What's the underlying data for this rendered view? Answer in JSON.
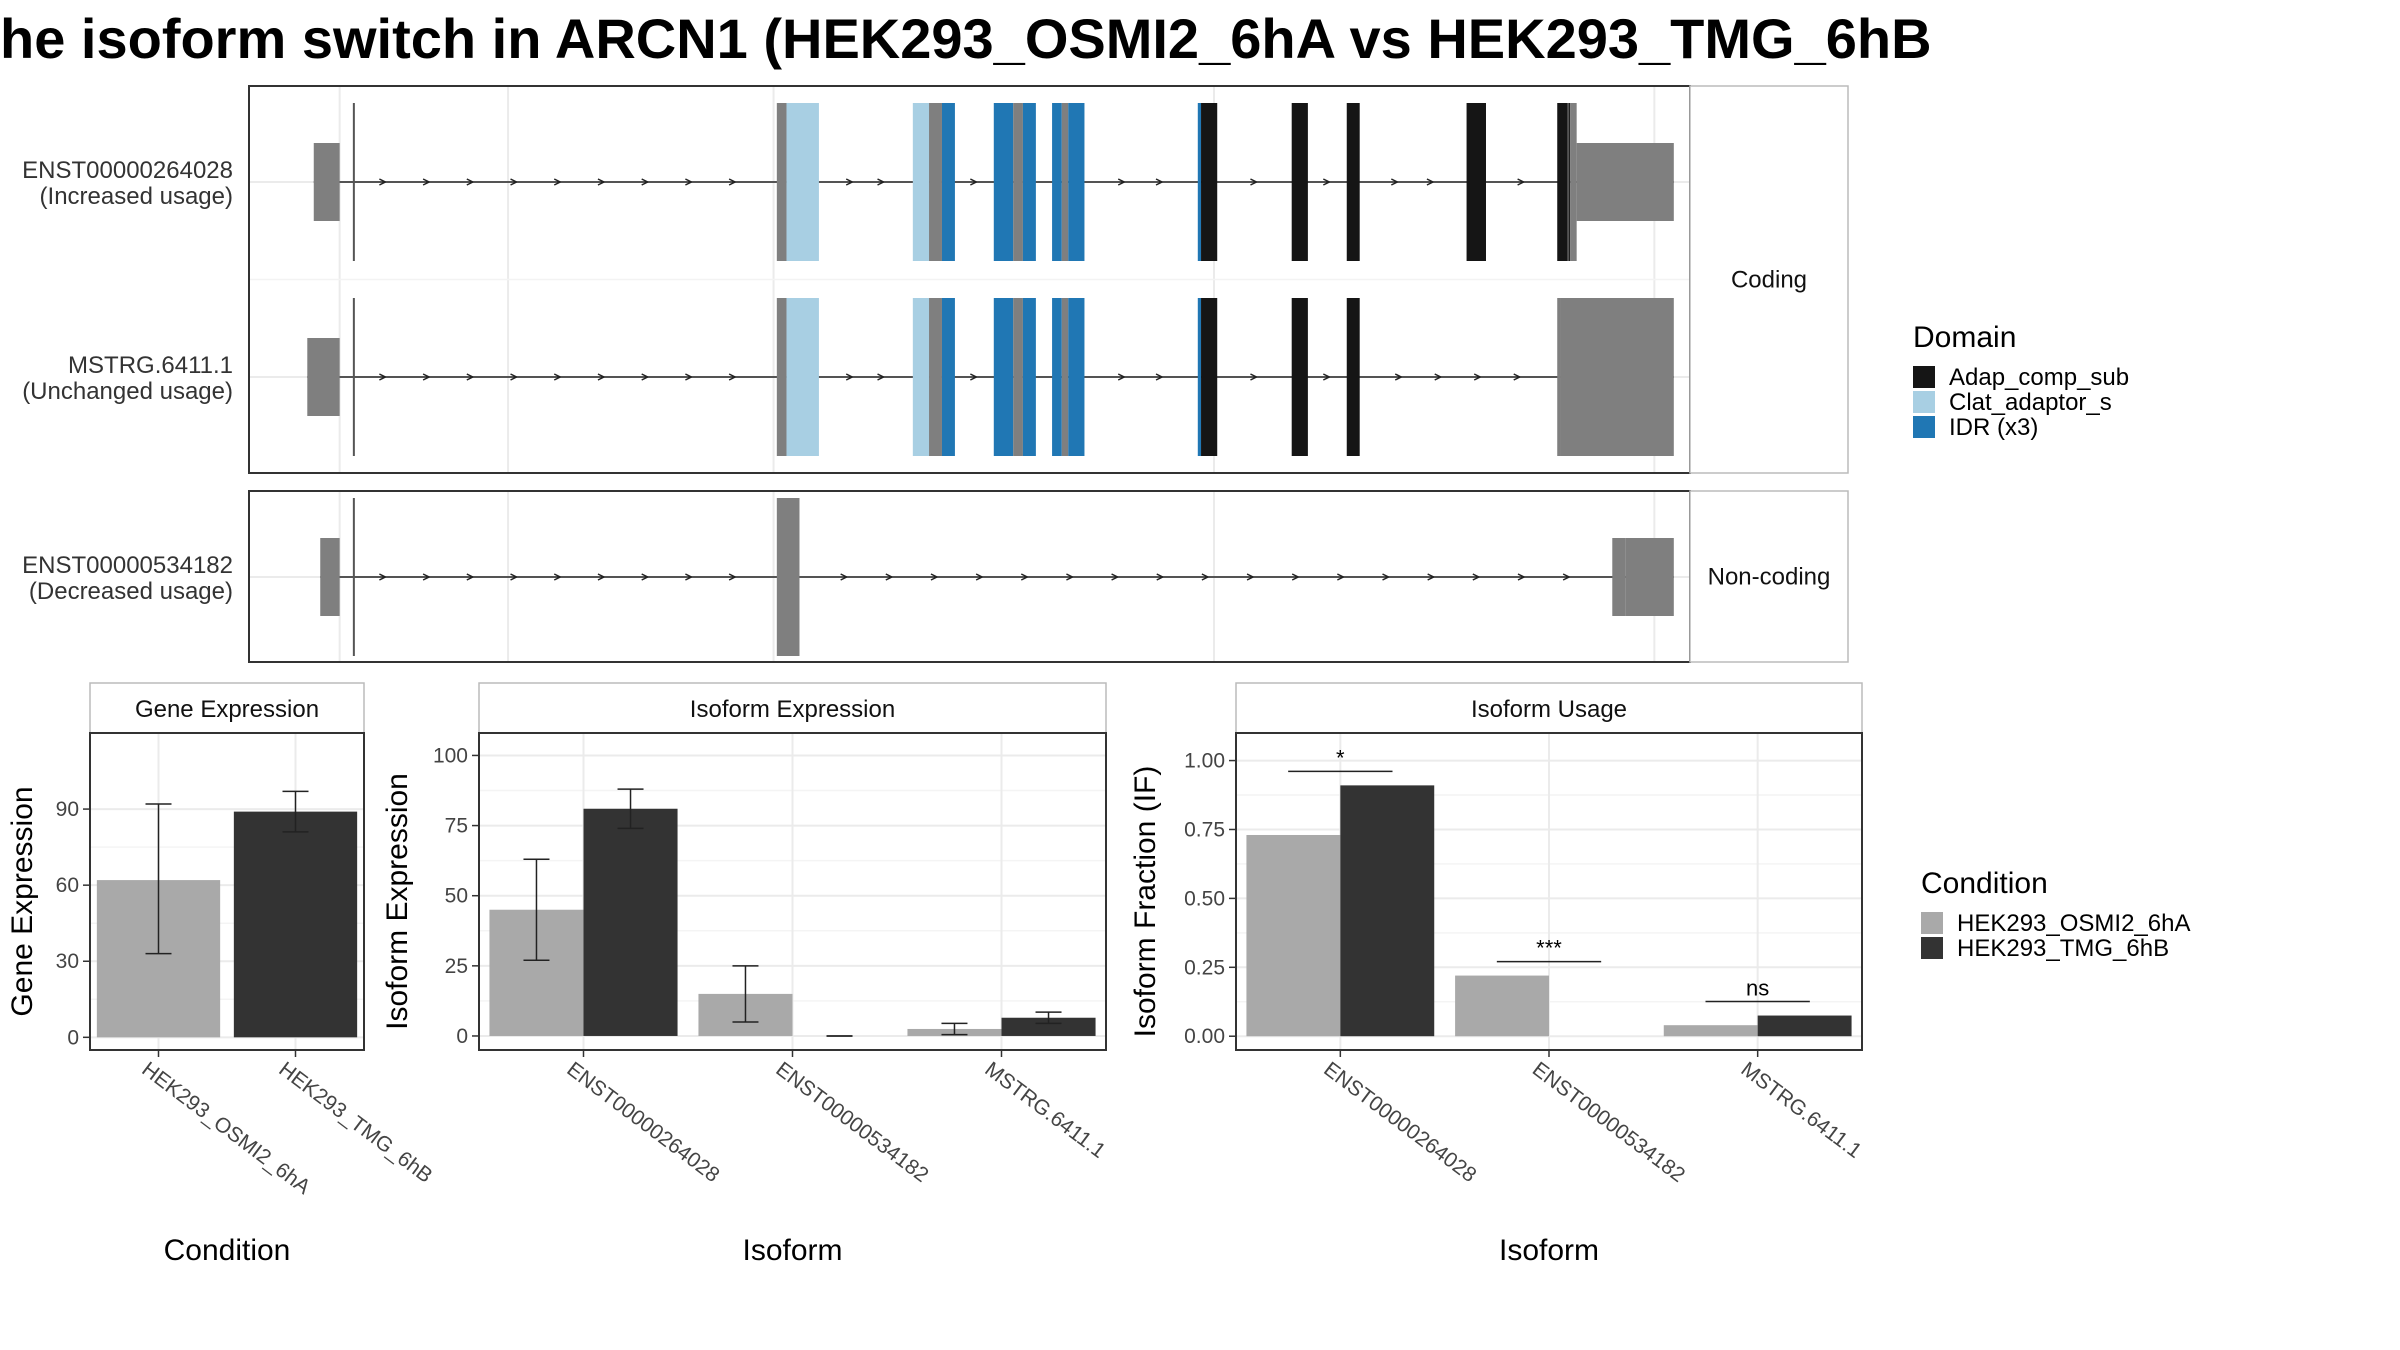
{
  "title": "he isoform switch in ARCN1 (HEK293_OSMI2_6hA vs HEK293_TMG_6hB",
  "structure": {
    "facets": [
      {
        "label": "Coding",
        "transcripts": [
          0,
          1
        ]
      },
      {
        "label": "Non-coding",
        "transcripts": [
          2
        ]
      }
    ],
    "transcripts": [
      {
        "id": "ENST00000264028",
        "usage": "(Increased usage)",
        "exons": [
          [
            60,
            68,
            "utr"
          ],
          [
            203,
            206,
            "utr"
          ],
          [
            206,
            216,
            "Clat_adaptor_s"
          ],
          [
            245,
            250,
            "Clat_adaptor_s"
          ],
          [
            250,
            254,
            "utr"
          ],
          [
            254,
            258,
            "IDR (x3)"
          ],
          [
            270,
            276,
            "IDR (x3)"
          ],
          [
            276,
            279,
            "utr"
          ],
          [
            279,
            283,
            "IDR (x3)"
          ],
          [
            288,
            291,
            "IDR (x3)"
          ],
          [
            291,
            293,
            "utr"
          ],
          [
            293,
            298,
            "IDR (x3)"
          ],
          [
            333,
            334,
            "IDR (x3)"
          ],
          [
            334,
            339,
            "Adap_comp_sub"
          ],
          [
            362,
            367,
            "Adap_comp_sub"
          ],
          [
            379,
            383,
            "Adap_comp_sub"
          ],
          [
            416,
            422,
            "Adap_comp_sub"
          ],
          [
            444,
            448,
            "Adap_comp_sub"
          ],
          [
            448,
            450,
            "utr"
          ],
          [
            450,
            480,
            "utr"
          ]
        ],
        "thin": [
          [
            68,
            73
          ],
          [
            444,
            448
          ]
        ]
      },
      {
        "id": "MSTRG.6411.1",
        "usage": "(Unchanged usage)",
        "exons": [
          [
            58,
            68,
            "utr"
          ],
          [
            203,
            206,
            "utr"
          ],
          [
            206,
            216,
            "Clat_adaptor_s"
          ],
          [
            245,
            250,
            "Clat_adaptor_s"
          ],
          [
            250,
            254,
            "utr"
          ],
          [
            254,
            258,
            "IDR (x3)"
          ],
          [
            270,
            276,
            "IDR (x3)"
          ],
          [
            276,
            279,
            "utr"
          ],
          [
            279,
            283,
            "IDR (x3)"
          ],
          [
            288,
            291,
            "IDR (x3)"
          ],
          [
            291,
            293,
            "utr"
          ],
          [
            293,
            298,
            "IDR (x3)"
          ],
          [
            333,
            334,
            "IDR (x3)"
          ],
          [
            334,
            339,
            "Adap_comp_sub"
          ],
          [
            362,
            367,
            "Adap_comp_sub"
          ],
          [
            379,
            383,
            "Adap_comp_sub"
          ],
          [
            444,
            445,
            "utr"
          ],
          [
            445,
            480,
            "utr"
          ]
        ],
        "thin": [
          [
            68,
            73
          ]
        ]
      },
      {
        "id": "ENST00000534182",
        "usage": "(Decreased usage)",
        "exons": [
          [
            62,
            68,
            "utr"
          ],
          [
            203,
            210,
            "utr"
          ],
          [
            461,
            465,
            "utr"
          ],
          [
            465,
            480,
            "utr"
          ]
        ],
        "thin": [
          [
            68,
            73
          ]
        ]
      }
    ],
    "x_range": [
      40,
      485
    ],
    "grid_x": [
      68,
      120,
      202,
      338,
      474
    ]
  },
  "legend_domain": {
    "title": "Domain",
    "items": [
      {
        "name": "Adap_comp_sub",
        "color": "#151515"
      },
      {
        "name": "Clat_adaptor_s",
        "color": "#a8cfe3"
      },
      {
        "name": "IDR (x3)",
        "color": "#2077b4"
      }
    ],
    "utr_color": "#7f7f7f"
  },
  "legend_condition": {
    "title": "Condition",
    "items": [
      {
        "name": "HEK293_OSMI2_6hA",
        "color": "#a9a9a9"
      },
      {
        "name": "HEK293_TMG_6hB",
        "color": "#333333"
      }
    ]
  },
  "chart_data": [
    {
      "type": "bar",
      "title": "Gene Expression",
      "xlabel": "Condition",
      "ylabel": "Gene Expression",
      "categories": [
        "HEK293_OSMI2_6hA",
        "HEK293_TMG_6hB"
      ],
      "values": [
        62,
        89
      ],
      "errors": [
        [
          33,
          92
        ],
        [
          81,
          97
        ]
      ],
      "ylim": [
        -5,
        120
      ],
      "yticks": [
        0,
        30,
        60,
        90
      ]
    },
    {
      "type": "bar",
      "title": "Isoform Expression",
      "xlabel": "Isoform",
      "ylabel": "Isoform Expression",
      "categories": [
        "ENST00000264028",
        "ENST00000534182",
        "MSTRG.6411.1"
      ],
      "series": [
        {
          "name": "HEK293_OSMI2_6hA",
          "values": [
            45,
            15,
            2.5
          ],
          "errors": [
            [
              27,
              63
            ],
            [
              5,
              25
            ],
            [
              0.5,
              4.5
            ]
          ]
        },
        {
          "name": "HEK293_TMG_6hB",
          "values": [
            81,
            0,
            6.5
          ],
          "errors": [
            [
              74,
              88
            ],
            [
              0,
              0
            ],
            [
              4.5,
              8.5
            ]
          ]
        }
      ],
      "ylim": [
        -5,
        108
      ],
      "yticks": [
        0,
        25,
        50,
        75,
        100
      ]
    },
    {
      "type": "bar",
      "title": "Isoform Usage",
      "xlabel": "Isoform",
      "ylabel": "Isoform Fraction (IF)",
      "categories": [
        "ENST00000264028",
        "ENST00000534182",
        "MSTRG.6411.1"
      ],
      "series": [
        {
          "name": "HEK293_OSMI2_6hA",
          "values": [
            0.73,
            0.22,
            0.04
          ]
        },
        {
          "name": "HEK293_TMG_6hB",
          "values": [
            0.91,
            0.0,
            0.075
          ]
        }
      ],
      "significance": [
        "*",
        "***",
        "ns"
      ],
      "ylim": [
        -0.05,
        1.1
      ],
      "yticks": [
        "0.00",
        "0.25",
        "0.50",
        "0.75",
        "1.00"
      ]
    }
  ]
}
